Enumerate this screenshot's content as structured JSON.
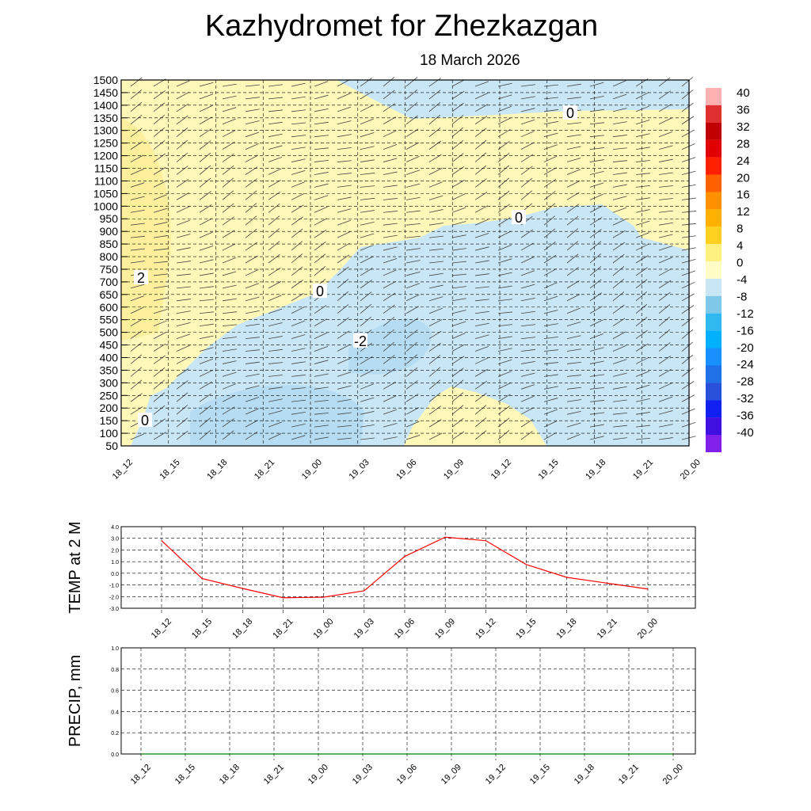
{
  "title": "Kazhydromet  for Zhezkazgan",
  "date": "18 March 2026",
  "chart_data": [
    {
      "type": "heatmap",
      "title": "Kazhydromet  for Zhezkazgan",
      "subtitle": "18 March 2026",
      "x": [
        "18_12",
        "18_15",
        "18_18",
        "18_21",
        "19_00",
        "19_03",
        "19_06",
        "19_09",
        "19_12",
        "19_15",
        "19_18",
        "19_21",
        "20_00"
      ],
      "ylim": [
        50,
        1500
      ],
      "yticks": [
        50,
        100,
        150,
        200,
        250,
        300,
        350,
        400,
        450,
        500,
        550,
        600,
        650,
        700,
        750,
        800,
        850,
        900,
        950,
        1000,
        1050,
        1100,
        1150,
        1200,
        1250,
        1300,
        1350,
        1400,
        1450,
        1500
      ],
      "colorbar": {
        "ticks": [
          "40",
          "36",
          "32",
          "28",
          "24",
          "20",
          "16",
          "12",
          "8",
          "4",
          "0",
          "-4",
          "-8",
          "-12",
          "-16",
          "-20",
          "-24",
          "-28",
          "-32",
          "-36",
          "-40"
        ],
        "colors": [
          "#ffb0b0",
          "#e03030",
          "#c00000",
          "#e00000",
          "#ff2000",
          "#ff6000",
          "#ff9000",
          "#ffb000",
          "#ffd020",
          "#fff080",
          "#fffcc8",
          "#c8e6f5",
          "#80c8ea",
          "#30b8f0",
          "#00b0ff",
          "#1890ff",
          "#2070e8",
          "#2850d8",
          "#1020f0",
          "#4010e0",
          "#8020e8"
        ]
      },
      "contour_labels": [
        "0",
        "0",
        "0",
        "0",
        "-2",
        "2"
      ]
    },
    {
      "type": "line",
      "ylabel": "TEMP at 2 M",
      "ylim": [
        -3,
        4
      ],
      "yticks": [
        "4.0",
        "3.0",
        "2.0",
        "1.0",
        "0.0",
        "-1.0",
        "-2.0",
        "-3.0"
      ],
      "x": [
        "18_12",
        "18_15",
        "18_18",
        "18_21",
        "19_00",
        "19_03",
        "19_06",
        "19_09",
        "19_12",
        "19_15",
        "19_18",
        "19_21",
        "20_00"
      ],
      "values": [
        2.8,
        -0.45,
        -1.3,
        -2.1,
        -2.05,
        -1.5,
        1.45,
        3.1,
        2.8,
        0.75,
        -0.35,
        -0.85,
        -1.35
      ],
      "color": "#ff0000"
    },
    {
      "type": "line",
      "ylabel": "PRECIP, mm",
      "ylim": [
        0,
        1
      ],
      "yticks": [
        "1.0",
        "0.8",
        "0.6",
        "0.4",
        "0.2",
        "0.0"
      ],
      "x": [
        "18_12",
        "18_15",
        "18_18",
        "18_21",
        "19_00",
        "19_03",
        "19_06",
        "19_09",
        "19_12",
        "19_15",
        "19_18",
        "19_21",
        "20_00"
      ],
      "values": [
        0,
        0,
        0,
        0,
        0,
        0,
        0,
        0,
        0,
        0,
        0,
        0,
        0
      ],
      "color": "#008000"
    }
  ]
}
